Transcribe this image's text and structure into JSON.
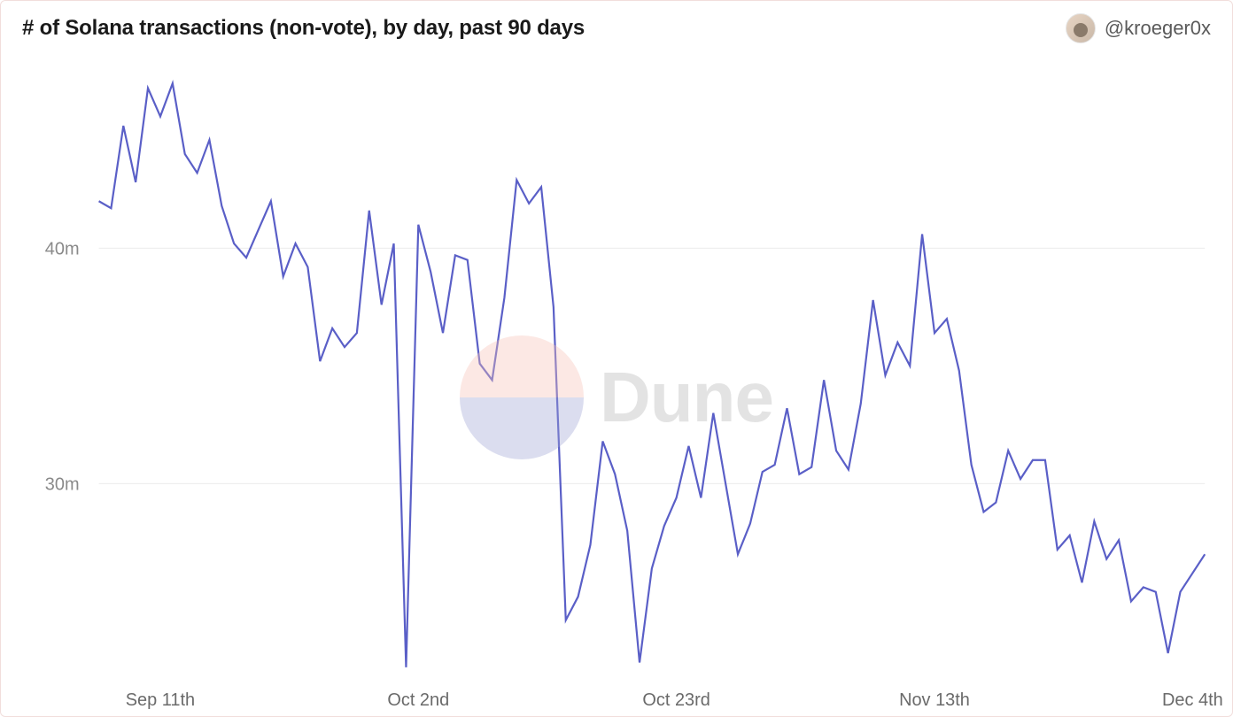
{
  "title": "# of Solana transactions (non-vote), by day, past 90 days",
  "author": {
    "handle": "@kroeger0x"
  },
  "watermark": {
    "text": "Dune",
    "top_color": "#f6c1b7",
    "bottom_color": "#a0a4d4"
  },
  "chart": {
    "type": "line",
    "line_color": "#5a5fc7",
    "line_width": 2.2,
    "background_color": "#ffffff",
    "grid_color": "#ececec",
    "x_ticks": [
      "Sep 11th",
      "Oct 2nd",
      "Oct 23rd",
      "Nov 13th",
      "Dec 4th"
    ],
    "x_tick_indices": [
      5,
      26,
      47,
      68,
      89
    ],
    "y_ticks": [
      {
        "value": 30000000,
        "label": "30m"
      },
      {
        "value": 40000000,
        "label": "40m"
      }
    ],
    "ylim": [
      22000000,
      47500000
    ],
    "x_count": 91,
    "title_fontsize": 24,
    "tick_fontsize": 20,
    "values": [
      42000000,
      41700000,
      45200000,
      42800000,
      46800000,
      45600000,
      47000000,
      44000000,
      43200000,
      44600000,
      41800000,
      40200000,
      39600000,
      40800000,
      42000000,
      38800000,
      40200000,
      39200000,
      35200000,
      36600000,
      35800000,
      36400000,
      41600000,
      37600000,
      40200000,
      22200000,
      41000000,
      39000000,
      36400000,
      39700000,
      39500000,
      35100000,
      34400000,
      37900000,
      42900000,
      41900000,
      42600000,
      37500000,
      24200000,
      25200000,
      27400000,
      31800000,
      30400000,
      28000000,
      22400000,
      26400000,
      28200000,
      29400000,
      31600000,
      29400000,
      33000000,
      30000000,
      27000000,
      28300000,
      30500000,
      30800000,
      33200000,
      30400000,
      30700000,
      34400000,
      31400000,
      30600000,
      33400000,
      37800000,
      34600000,
      36000000,
      35000000,
      40600000,
      36400000,
      37000000,
      34800000,
      30800000,
      28800000,
      29200000,
      31400000,
      30200000,
      31000000,
      31000000,
      27200000,
      27800000,
      25800000,
      28400000,
      26800000,
      27600000,
      25000000,
      25600000,
      25400000,
      22800000,
      25400000,
      26200000,
      27000000
    ]
  }
}
